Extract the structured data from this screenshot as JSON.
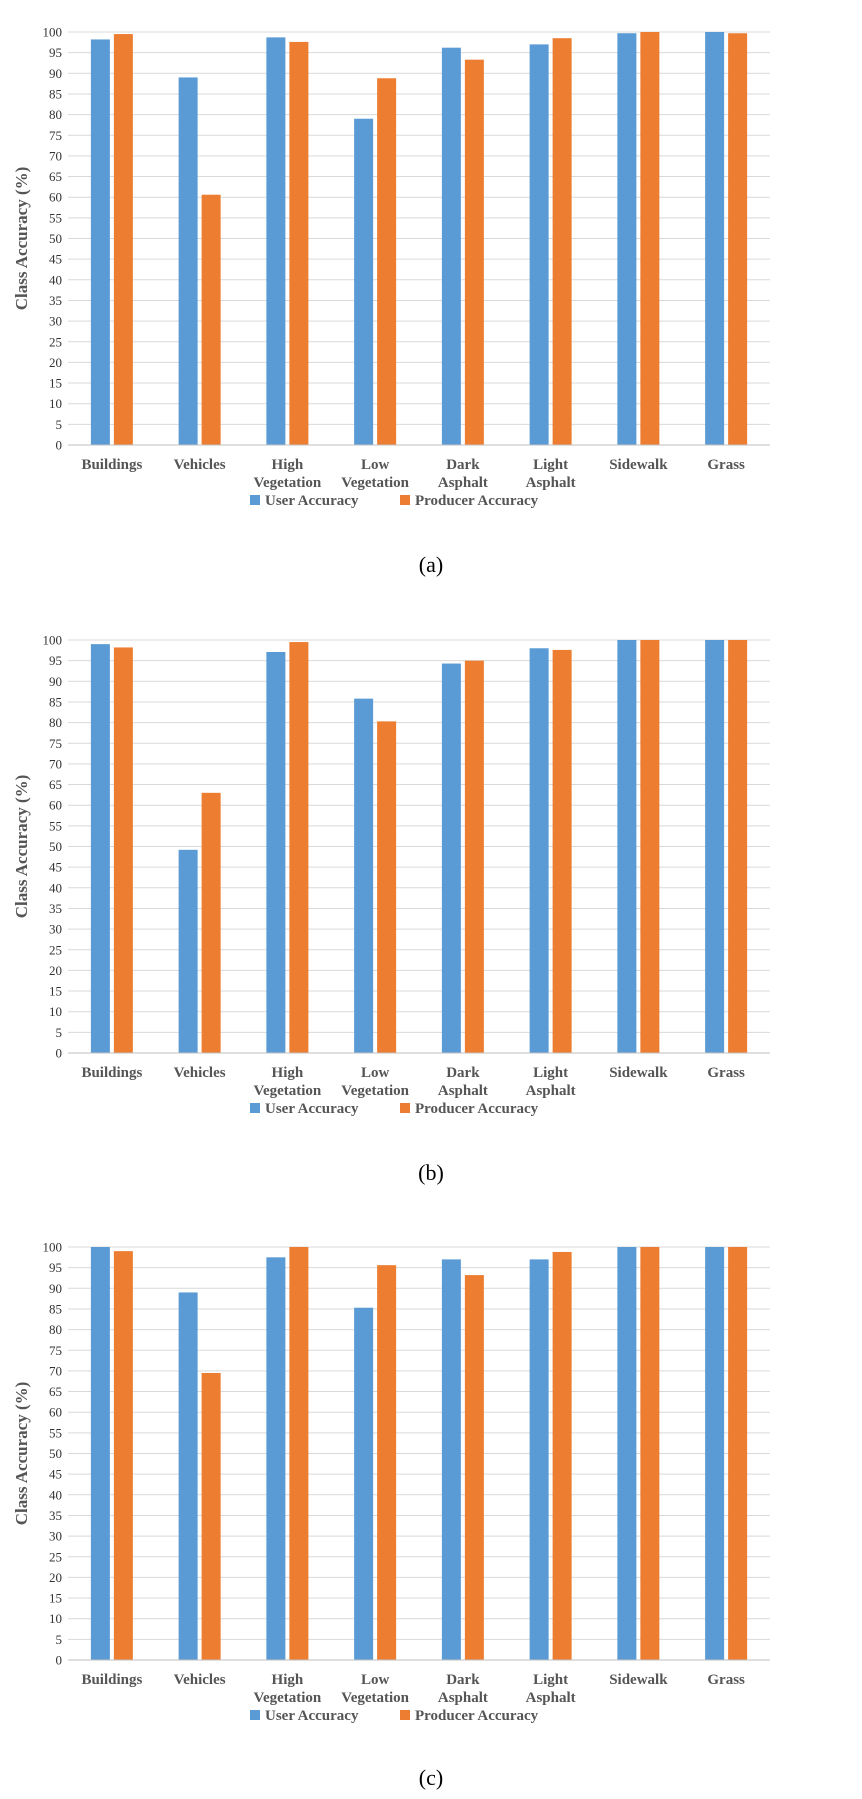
{
  "colors": {
    "user": "#5B9BD5",
    "producer": "#ED7D31",
    "grid": "#D9D9D9"
  },
  "chart_data": [
    {
      "type": "bar",
      "panel_label": "(a)",
      "ylabel": "Class Accuracy  (%)",
      "ylim": [
        0,
        100
      ],
      "yticks": [
        0,
        5,
        10,
        15,
        20,
        25,
        30,
        35,
        40,
        45,
        50,
        55,
        60,
        65,
        70,
        75,
        80,
        85,
        90,
        95,
        100
      ],
      "categories": [
        [
          "Buildings"
        ],
        [
          "Vehicles"
        ],
        [
          "High",
          "Vegetation"
        ],
        [
          "Low",
          "Vegetation"
        ],
        [
          "Dark",
          "Asphalt"
        ],
        [
          "Light",
          "Asphalt"
        ],
        [
          "Sidewalk"
        ],
        [
          "Grass"
        ]
      ],
      "series": [
        {
          "name": "User Accuracy",
          "values": [
            98.2,
            89.0,
            98.7,
            79.0,
            96.2,
            97.0,
            99.7,
            100
          ]
        },
        {
          "name": "Producer Accuracy",
          "values": [
            99.5,
            60.6,
            97.6,
            88.8,
            93.3,
            98.5,
            100,
            99.7
          ]
        }
      ]
    },
    {
      "type": "bar",
      "panel_label": "(b)",
      "ylabel": "Class Accuracy  (%)",
      "ylim": [
        0,
        100
      ],
      "yticks": [
        0,
        5,
        10,
        15,
        20,
        25,
        30,
        35,
        40,
        45,
        50,
        55,
        60,
        65,
        70,
        75,
        80,
        85,
        90,
        95,
        100
      ],
      "categories": [
        [
          "Buildings"
        ],
        [
          "Vehicles"
        ],
        [
          "High",
          "Vegetation"
        ],
        [
          "Low",
          "Vegetation"
        ],
        [
          "Dark",
          "Asphalt"
        ],
        [
          "Light",
          "Asphalt"
        ],
        [
          "Sidewalk"
        ],
        [
          "Grass"
        ]
      ],
      "series": [
        {
          "name": "User Accuracy",
          "values": [
            99.0,
            49.2,
            97.1,
            85.8,
            94.3,
            98.0,
            100,
            100
          ]
        },
        {
          "name": "Producer Accuracy",
          "values": [
            98.2,
            63.0,
            99.5,
            80.3,
            95.0,
            97.6,
            100,
            100
          ]
        }
      ]
    },
    {
      "type": "bar",
      "panel_label": "(c)",
      "ylabel": "Class Accuracy  (%)",
      "ylim": [
        0,
        100
      ],
      "yticks": [
        0,
        5,
        10,
        15,
        20,
        25,
        30,
        35,
        40,
        45,
        50,
        55,
        60,
        65,
        70,
        75,
        80,
        85,
        90,
        95,
        100
      ],
      "categories": [
        [
          "Buildings"
        ],
        [
          "Vehicles"
        ],
        [
          "High",
          "Vegetation"
        ],
        [
          "Low",
          "Vegetation"
        ],
        [
          "Dark",
          "Asphalt"
        ],
        [
          "Light",
          "Asphalt"
        ],
        [
          "Sidewalk"
        ],
        [
          "Grass"
        ]
      ],
      "series": [
        {
          "name": "User Accuracy",
          "values": [
            100,
            89.0,
            97.5,
            85.3,
            97.0,
            97.0,
            100,
            100
          ]
        },
        {
          "name": "Producer Accuracy",
          "values": [
            99.0,
            69.5,
            100,
            95.6,
            93.2,
            98.8,
            100,
            100
          ]
        }
      ]
    }
  ]
}
